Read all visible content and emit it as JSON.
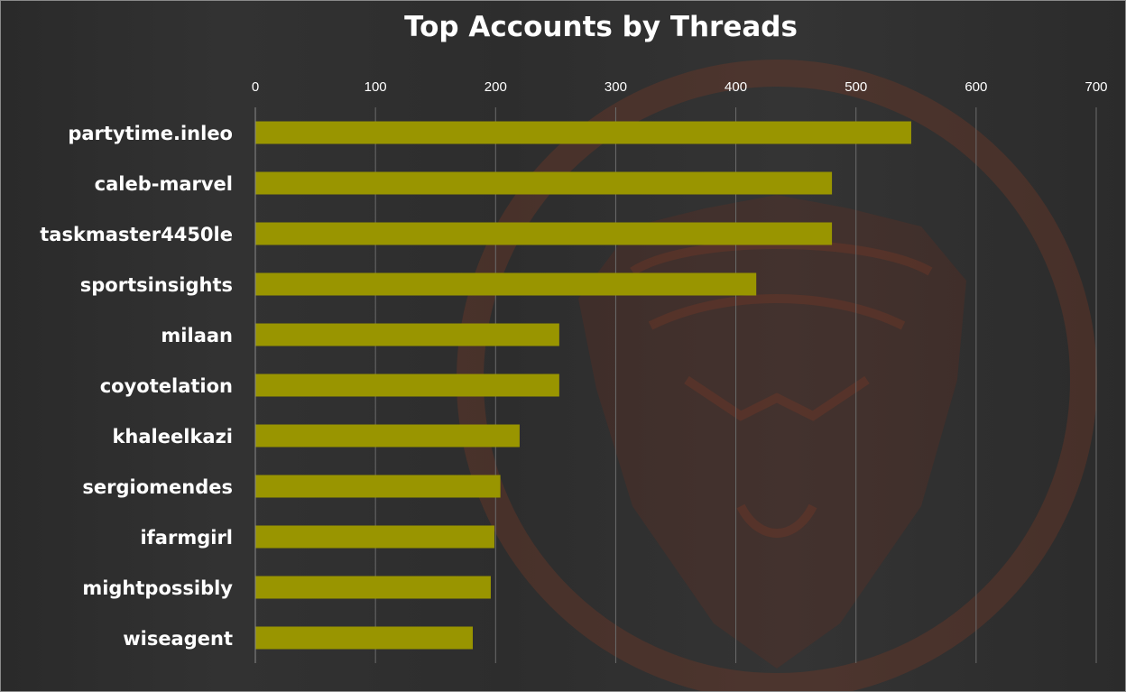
{
  "chart_data": {
    "type": "bar",
    "orientation": "horizontal",
    "title": "Top Accounts by Threads",
    "xlabel": "",
    "ylabel": "",
    "xlim": [
      0,
      700
    ],
    "ticks": [
      0,
      100,
      200,
      300,
      400,
      500,
      600,
      700
    ],
    "grid": true,
    "legend": "none",
    "bar_color": "#999500",
    "categories": [
      "partytime.inleo",
      "caleb-marvel",
      "taskmaster4450le",
      "sportsinsights",
      "milaan",
      "coyotelation",
      "khaleelkazi",
      "sergiomendes",
      "ifarmgirl",
      "mightpossibly",
      "wiseagent"
    ],
    "values": [
      546,
      480,
      480,
      417,
      253,
      253,
      220,
      204,
      199,
      196,
      181
    ]
  }
}
